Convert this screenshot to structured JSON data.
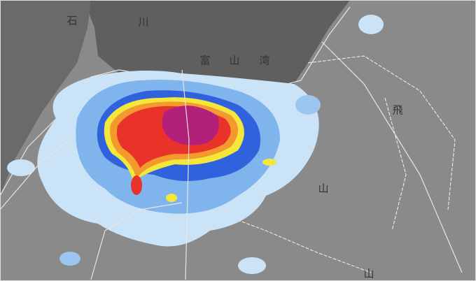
{
  "map": {
    "labels": [
      "石",
      "川",
      "富",
      "山",
      "湾",
      "飛",
      "山",
      "山"
    ]
  }
}
